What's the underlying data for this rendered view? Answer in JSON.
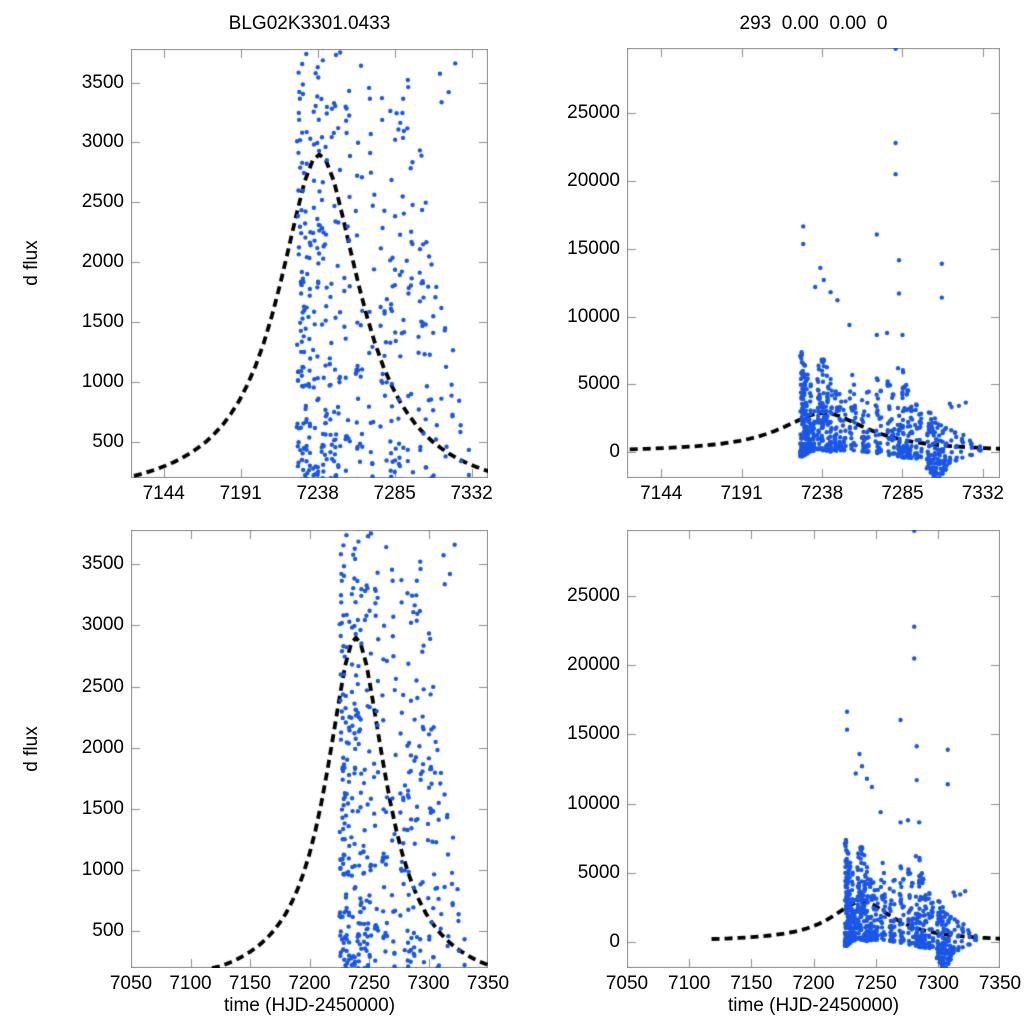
{
  "figure": {
    "background": "#ffffff",
    "frame_color": "#8c8c8c",
    "text_color": "#000000"
  },
  "chart_data": {
    "type": "scatter",
    "description": "2x2 grid of microlensing light-curve panels: same photometric dataset and dashed model fit shown with zoomed (left column) and full (right column) flux ranges, and data-span (top row) vs wide (bottom row) time ranges",
    "marker": "filled-circle",
    "marker_color": "#1a57e8",
    "model_line_color": "#000000",
    "model_line_style": "dashed",
    "panels": [
      {
        "position": "top-left",
        "title": "BLG02K3301.0433",
        "xlabel": "",
        "ylabel": "d flux",
        "x_range": [
          7124,
          7342
        ],
        "y_range": [
          200,
          3780
        ],
        "x_ticks": [
          7144,
          7191,
          7238,
          7285,
          7332
        ],
        "y_ticks": [
          500,
          1000,
          1500,
          2000,
          2500,
          3000,
          3500
        ],
        "grid": false
      },
      {
        "position": "top-right",
        "title": "293  0.00  0.00  0",
        "xlabel": "",
        "ylabel": "",
        "x_range": [
          7124,
          7342
        ],
        "y_range": [
          -1900,
          29800
        ],
        "x_ticks": [
          7144,
          7191,
          7238,
          7285,
          7332
        ],
        "y_ticks": [
          0,
          5000,
          10000,
          15000,
          20000,
          25000
        ],
        "grid": false
      },
      {
        "position": "bottom-left",
        "title": "",
        "xlabel": "time (HJD-2450000)",
        "ylabel": "d flux",
        "x_range": [
          7050,
          7350
        ],
        "y_range": [
          200,
          3780
        ],
        "x_ticks": [
          7050,
          7100,
          7150,
          7200,
          7250,
          7300,
          7350
        ],
        "y_ticks": [
          500,
          1000,
          1500,
          2000,
          2500,
          3000,
          3500
        ],
        "grid": false
      },
      {
        "position": "bottom-right",
        "title": "",
        "xlabel": "time (HJD-2450000)",
        "ylabel": "",
        "x_range": [
          7050,
          7350
        ],
        "y_range": [
          -1900,
          29800
        ],
        "x_ticks": [
          7050,
          7100,
          7150,
          7200,
          7250,
          7300,
          7350
        ],
        "y_ticks": [
          0,
          5000,
          10000,
          15000,
          20000,
          25000
        ],
        "grid": false
      }
    ],
    "model_curve": {
      "name": "paczynski-fit",
      "peak_time": 7239,
      "peak_dflux": 2900,
      "points": [
        [
          7118,
          200
        ],
        [
          7125,
          215
        ],
        [
          7130,
          233
        ],
        [
          7135,
          253
        ],
        [
          7140,
          276
        ],
        [
          7145,
          302
        ],
        [
          7150,
          332
        ],
        [
          7155,
          366
        ],
        [
          7160,
          406
        ],
        [
          7165,
          452
        ],
        [
          7170,
          505
        ],
        [
          7175,
          570
        ],
        [
          7180,
          644
        ],
        [
          7185,
          736
        ],
        [
          7190,
          843
        ],
        [
          7195,
          976
        ],
        [
          7200,
          1133
        ],
        [
          7205,
          1324
        ],
        [
          7210,
          1551
        ],
        [
          7215,
          1813
        ],
        [
          7220,
          2101
        ],
        [
          7225,
          2397
        ],
        [
          7230,
          2673
        ],
        [
          7235,
          2852
        ],
        [
          7239,
          2900
        ],
        [
          7243,
          2852
        ],
        [
          7248,
          2673
        ],
        [
          7253,
          2397
        ],
        [
          7258,
          2101
        ],
        [
          7263,
          1813
        ],
        [
          7268,
          1551
        ],
        [
          7273,
          1324
        ],
        [
          7278,
          1133
        ],
        [
          7283,
          976
        ],
        [
          7288,
          843
        ],
        [
          7293,
          736
        ],
        [
          7298,
          644
        ],
        [
          7303,
          570
        ],
        [
          7308,
          505
        ],
        [
          7313,
          452
        ],
        [
          7318,
          406
        ],
        [
          7323,
          366
        ],
        [
          7328,
          332
        ],
        [
          7333,
          302
        ],
        [
          7338,
          276
        ],
        [
          7343,
          253
        ],
        [
          7348,
          233
        ],
        [
          7353,
          218
        ],
        [
          7356,
          210
        ]
      ]
    },
    "observations": {
      "name": "photometry",
      "seed": 20150433,
      "cluster_spread_days": 1.6,
      "vertical_bias_exponent": 1.8,
      "clusters": [
        [
          7226,
          55,
          -300,
          7400
        ],
        [
          7227.5,
          45,
          -200,
          6600
        ],
        [
          7229,
          40,
          -100,
          5800
        ],
        [
          7231,
          30,
          0,
          5200
        ],
        [
          7233,
          22,
          100,
          4600
        ],
        [
          7236,
          30,
          200,
          6400
        ],
        [
          7238.5,
          38,
          150,
          7000
        ],
        [
          7241,
          30,
          100,
          6300
        ],
        [
          7243,
          26,
          50,
          5600
        ],
        [
          7246,
          22,
          100,
          5000
        ],
        [
          7248.5,
          20,
          100,
          4400
        ],
        [
          7251,
          16,
          150,
          3900
        ],
        [
          7255,
          16,
          100,
          6200
        ],
        [
          7257,
          13,
          100,
          5100
        ],
        [
          7262,
          18,
          50,
          5900
        ],
        [
          7264.5,
          15,
          0,
          5000
        ],
        [
          7270,
          16,
          -100,
          5600
        ],
        [
          7272,
          14,
          0,
          4600
        ],
        [
          7277,
          18,
          -200,
          6100
        ],
        [
          7279.5,
          15,
          -100,
          5000
        ],
        [
          7283,
          22,
          -300,
          7200
        ],
        [
          7285.5,
          26,
          -400,
          6400
        ],
        [
          7288,
          22,
          -400,
          5000
        ],
        [
          7290,
          16,
          -500,
          3800
        ],
        [
          7293,
          16,
          -600,
          4300
        ],
        [
          7295.5,
          14,
          -500,
          3400
        ],
        [
          7300,
          22,
          -1200,
          3200
        ],
        [
          7302,
          26,
          -1500,
          2900
        ],
        [
          7304,
          22,
          -1800,
          2600
        ],
        [
          7306,
          18,
          -2100,
          2300
        ],
        [
          7308,
          16,
          -1600,
          2000
        ],
        [
          7310,
          14,
          -1300,
          1800
        ],
        [
          7313,
          10,
          -800,
          3700
        ],
        [
          7316,
          8,
          -600,
          2200
        ],
        [
          7320,
          7,
          -400,
          1500
        ],
        [
          7325,
          6,
          -200,
          900
        ],
        [
          7330,
          4,
          100,
          700
        ]
      ],
      "outliers": [
        [
          7281,
          29750
        ],
        [
          7281,
          22800
        ],
        [
          7281,
          20500
        ],
        [
          7227,
          16650
        ],
        [
          7227,
          15350
        ],
        [
          7270,
          16050
        ],
        [
          7237,
          13590
        ],
        [
          7239,
          12700
        ],
        [
          7234,
          12180
        ],
        [
          7243,
          11800
        ],
        [
          7247,
          11200
        ],
        [
          7283,
          14150
        ],
        [
          7283,
          11700
        ],
        [
          7308,
          13900
        ],
        [
          7308,
          11400
        ],
        [
          7254,
          9380
        ],
        [
          7270,
          8640
        ],
        [
          7276,
          8790
        ],
        [
          7285,
          8640
        ],
        [
          7322,
          3660
        ],
        [
          7318,
          3420
        ]
      ]
    }
  }
}
